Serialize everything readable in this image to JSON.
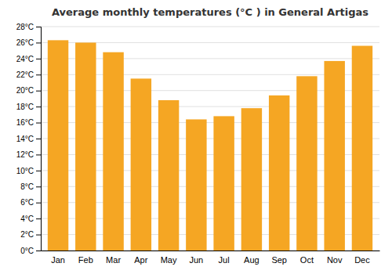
{
  "chart_data": {
    "type": "bar",
    "title": "Average monthly temperatures (°C ) in General Artigas",
    "categories": [
      "Jan",
      "Feb",
      "Mar",
      "Apr",
      "May",
      "Jun",
      "Jul",
      "Aug",
      "Sep",
      "Oct",
      "Nov",
      "Dec"
    ],
    "values": [
      26.3,
      26.0,
      24.8,
      21.5,
      18.8,
      16.4,
      16.8,
      17.8,
      19.4,
      21.8,
      23.7,
      25.6
    ],
    "color": "#F5A623",
    "ylim": [
      0,
      28
    ],
    "yticks": [
      {
        "value": 0,
        "label": "0°C"
      },
      {
        "value": 2,
        "label": "2°C"
      },
      {
        "value": 4,
        "label": "4°C"
      },
      {
        "value": 6,
        "label": "6°C"
      },
      {
        "value": 8,
        "label": "8°C"
      },
      {
        "value": 10,
        "label": "10°C"
      },
      {
        "value": 12,
        "label": "12°C"
      },
      {
        "value": 14,
        "label": "14°C"
      },
      {
        "value": 16,
        "label": "16°C"
      },
      {
        "value": 18,
        "label": "18°C"
      },
      {
        "value": 20,
        "label": "20°C"
      },
      {
        "value": 22,
        "label": "22°C"
      },
      {
        "value": 24,
        "label": "24°C"
      },
      {
        "value": 26,
        "label": "26°C"
      },
      {
        "value": 28,
        "label": "28°C"
      }
    ],
    "grid": true
  }
}
